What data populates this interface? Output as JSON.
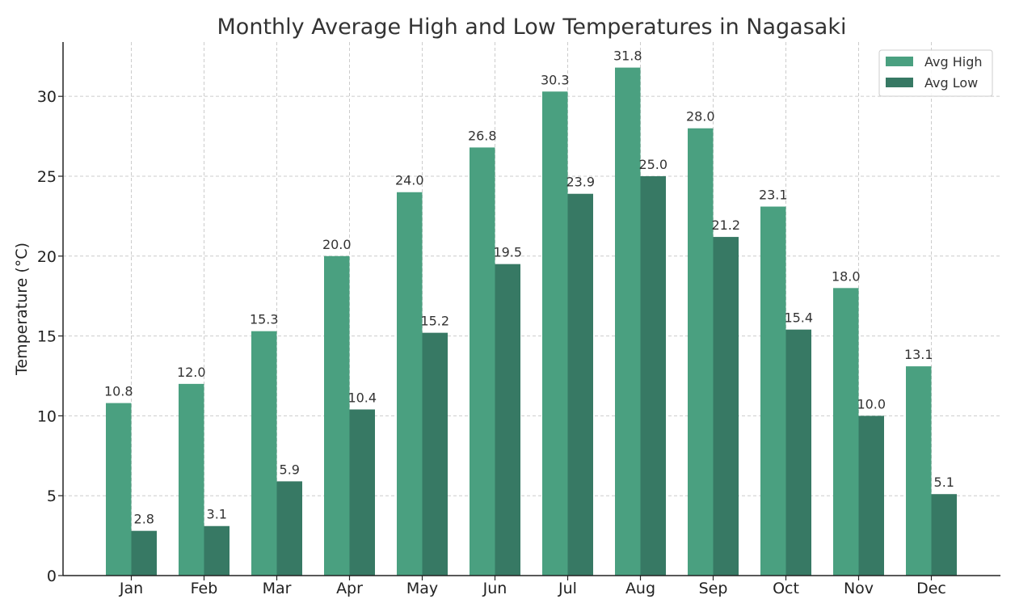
{
  "chart_data": {
    "type": "bar",
    "title": "Monthly Average High and Low Temperatures in Nagasaki",
    "xlabel": "",
    "ylabel": "Temperature (°C)",
    "categories": [
      "Jan",
      "Feb",
      "Mar",
      "Apr",
      "May",
      "Jun",
      "Jul",
      "Aug",
      "Sep",
      "Oct",
      "Nov",
      "Dec"
    ],
    "series": [
      {
        "name": "Avg High",
        "color": "#4aa080",
        "values": [
          10.8,
          12.0,
          15.3,
          20.0,
          24.0,
          26.8,
          30.3,
          31.8,
          28.0,
          23.1,
          18.0,
          13.1
        ]
      },
      {
        "name": "Avg Low",
        "color": "#377964",
        "values": [
          2.8,
          3.1,
          5.9,
          10.4,
          15.2,
          19.5,
          23.9,
          25.0,
          21.2,
          15.4,
          10.0,
          5.1
        ]
      }
    ],
    "ylim": [
      0,
      33.4
    ],
    "yticks": [
      0,
      5,
      10,
      15,
      20,
      25,
      30
    ],
    "grid": true,
    "legend": "top-right"
  }
}
